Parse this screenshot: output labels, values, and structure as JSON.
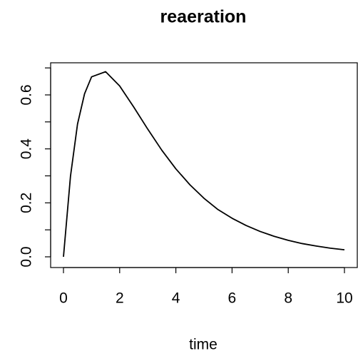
{
  "chart_data": {
    "type": "line",
    "title": "reaeration",
    "x_label": "time",
    "x": [
      0,
      0.25,
      0.5,
      0.75,
      1,
      1.5,
      2,
      2.5,
      3,
      3.5,
      4,
      4.5,
      5,
      5.5,
      6,
      6.5,
      7,
      7.5,
      8,
      8.5,
      9,
      9.5,
      10
    ],
    "values": [
      0,
      0.299,
      0.492,
      0.604,
      0.667,
      0.686,
      0.633,
      0.555,
      0.473,
      0.395,
      0.326,
      0.267,
      0.217,
      0.175,
      0.143,
      0.116,
      0.094,
      0.076,
      0.061,
      0.049,
      0.04,
      0.032,
      0.026
    ],
    "color": "#000000",
    "xlim": [
      -0.457,
      10.457
    ],
    "ylim": [
      -0.0397,
      0.719
    ],
    "xticks": [
      0,
      2,
      4,
      6,
      8,
      10
    ],
    "yticks": [
      {
        "value": 0,
        "label": "0.0"
      },
      {
        "value": 0.1,
        "label": null
      },
      {
        "value": 0.2,
        "label": "0.2"
      },
      {
        "value": 0.3,
        "label": null
      },
      {
        "value": 0.4,
        "label": "0.4"
      },
      {
        "value": 0.5,
        "label": null
      },
      {
        "value": 0.6,
        "label": "0.6"
      },
      {
        "value": 0.7,
        "label": null
      }
    ],
    "grid": false
  }
}
